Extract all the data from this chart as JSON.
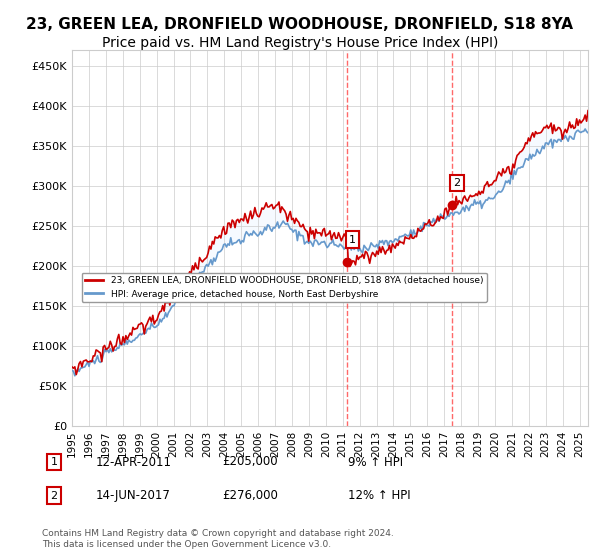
{
  "title": "23, GREEN LEA, DRONFIELD WOODHOUSE, DRONFIELD, S18 8YA",
  "subtitle": "Price paid vs. HM Land Registry's House Price Index (HPI)",
  "xlim_start": 1995.0,
  "xlim_end": 2025.5,
  "ylim": [
    0,
    470000
  ],
  "yticks": [
    0,
    50000,
    100000,
    150000,
    200000,
    250000,
    300000,
    350000,
    400000,
    450000
  ],
  "ytick_labels": [
    "£0",
    "£50K",
    "£100K",
    "£150K",
    "£200K",
    "£250K",
    "£300K",
    "£350K",
    "£400K",
    "£450K"
  ],
  "xticks": [
    1995,
    1996,
    1997,
    1998,
    1999,
    2000,
    2001,
    2002,
    2003,
    2004,
    2005,
    2006,
    2007,
    2008,
    2009,
    2010,
    2011,
    2012,
    2013,
    2014,
    2015,
    2016,
    2017,
    2018,
    2019,
    2020,
    2021,
    2022,
    2023,
    2024,
    2025
  ],
  "sale1_x": 2011.28,
  "sale1_y": 205000,
  "sale1_label": "1",
  "sale2_x": 2017.45,
  "sale2_y": 276000,
  "sale2_label": "2",
  "vline1_x": 2011.28,
  "vline2_x": 2017.45,
  "red_line_color": "#cc0000",
  "blue_line_color": "#6699cc",
  "shaded_region_color": "#ddeeff",
  "vline_color": "#ff4444",
  "background_color": "#ffffff",
  "plot_bg_color": "#ffffff",
  "grid_color": "#cccccc",
  "legend_label1": "23, GREEN LEA, DRONFIELD WOODHOUSE, DRONFIELD, S18 8YA (detached house)",
  "legend_label2": "HPI: Average price, detached house, North East Derbyshire",
  "ann1_date": "12-APR-2011",
  "ann1_price": "£205,000",
  "ann1_hpi": "9% ↑ HPI",
  "ann2_date": "14-JUN-2017",
  "ann2_price": "£276,000",
  "ann2_hpi": "12% ↑ HPI",
  "footer": "Contains HM Land Registry data © Crown copyright and database right 2024.\nThis data is licensed under the Open Government Licence v3.0.",
  "title_fontsize": 11,
  "subtitle_fontsize": 10
}
